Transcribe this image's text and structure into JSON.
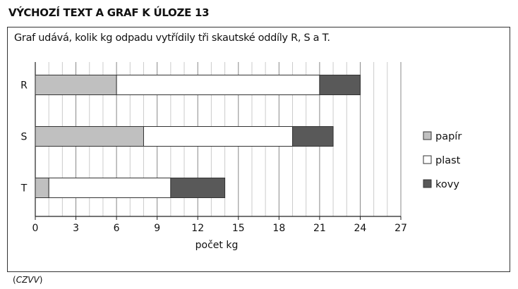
{
  "heading": "VÝCHOZÍ TEXT A GRAF K ÚLOZE 13",
  "description": "Graf udává, kolik kg odpadu vytřídily tři skautské oddíly R, S a T.",
  "source_prefix": "(",
  "source": "CZVV",
  "source_suffix": ")",
  "chart_data": {
    "type": "bar",
    "orientation": "horizontal",
    "stacked": true,
    "categories": [
      "R",
      "S",
      "T"
    ],
    "series": [
      {
        "name": "papír",
        "values": [
          6,
          8,
          1
        ],
        "color": "#c0c0c0"
      },
      {
        "name": "plast",
        "values": [
          15,
          11,
          9
        ],
        "color": "#ffffff"
      },
      {
        "name": "kovy",
        "values": [
          3,
          3,
          4
        ],
        "color": "#595959"
      }
    ],
    "xlabel": "počet kg",
    "xlim": [
      0,
      27
    ],
    "xticks": [
      "0",
      "3",
      "6",
      "9",
      "12",
      "15",
      "18",
      "21",
      "24",
      "27"
    ],
    "grid": true,
    "legend": "right"
  }
}
